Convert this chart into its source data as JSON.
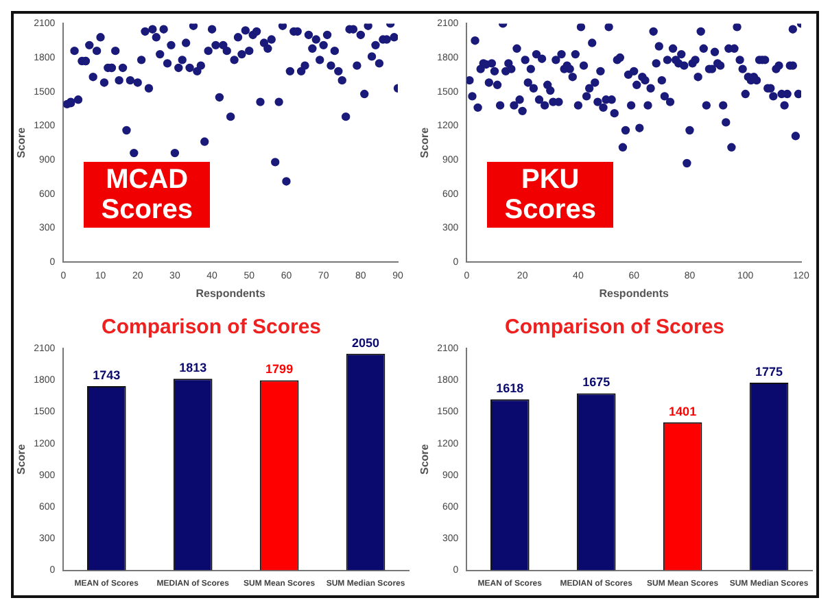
{
  "chart_data": [
    {
      "type": "scatter",
      "xlabel": "Respondents",
      "ylabel": "Score",
      "color": "#1a1a7a",
      "marker": "circle",
      "xlim": [
        0,
        90
      ],
      "xticks": [
        0,
        10,
        20,
        30,
        40,
        50,
        60,
        70,
        80,
        90
      ],
      "ylim": [
        0,
        2100
      ],
      "yticks": [
        0,
        300,
        600,
        900,
        1200,
        1500,
        1800,
        2100
      ],
      "annotations": [
        "MCAD Scores"
      ],
      "x": [
        1,
        2,
        2,
        3,
        4,
        5,
        6,
        6,
        7,
        8,
        9,
        10,
        11,
        12,
        13,
        13,
        14,
        15,
        16,
        17,
        18,
        19,
        20,
        21,
        22,
        23,
        24,
        25,
        26,
        27,
        28,
        29,
        30,
        31,
        32,
        33,
        34,
        35,
        36,
        37,
        38,
        39,
        40,
        41,
        42,
        43,
        44,
        45,
        46,
        47,
        48,
        49,
        50,
        51,
        52,
        53,
        54,
        55,
        56,
        57,
        58,
        59,
        60,
        61,
        62,
        63,
        64,
        65,
        66,
        67,
        68,
        69,
        70,
        71,
        72,
        73,
        74,
        75,
        76,
        77,
        78,
        79,
        80,
        81,
        82,
        83,
        84,
        85,
        86,
        87,
        88,
        89,
        90
      ],
      "values": [
        1390,
        1400,
        1410,
        1860,
        1430,
        1770,
        1770,
        1770,
        1910,
        1630,
        1860,
        1980,
        1580,
        1710,
        1710,
        1710,
        1860,
        1600,
        1710,
        1160,
        1600,
        960,
        1580,
        1780,
        2030,
        1530,
        2050,
        1980,
        1830,
        2050,
        1750,
        1910,
        960,
        1710,
        1780,
        1930,
        1710,
        2080,
        1680,
        1730,
        1060,
        1860,
        2050,
        1910,
        1450,
        1910,
        1860,
        1280,
        1780,
        1980,
        1830,
        2040,
        1860,
        2000,
        2030,
        1410,
        1930,
        1880,
        1960,
        880,
        1410,
        2080,
        710,
        1680,
        2030,
        2030,
        1680,
        1730,
        2000,
        1880,
        1960,
        1780,
        1910,
        2000,
        1730,
        1860,
        1680,
        1600,
        1280,
        2050,
        2050,
        1730,
        2000,
        1480,
        2080,
        1810,
        1910,
        1750,
        1960,
        1960,
        2100,
        1980,
        1530
      ]
    },
    {
      "type": "scatter",
      "xlabel": "Respondents",
      "ylabel": "Score",
      "color": "#1a1a7a",
      "marker": "circle",
      "xlim": [
        0,
        120
      ],
      "xticks": [
        0,
        20,
        40,
        60,
        80,
        100,
        120
      ],
      "ylim": [
        0,
        2100
      ],
      "yticks": [
        0,
        300,
        600,
        900,
        1200,
        1500,
        1800,
        2100
      ],
      "annotations": [
        "PKU Scores"
      ],
      "x": [
        1,
        2,
        3,
        4,
        5,
        6,
        7,
        8,
        9,
        10,
        11,
        12,
        13,
        14,
        15,
        16,
        17,
        18,
        19,
        20,
        21,
        22,
        23,
        24,
        25,
        26,
        27,
        28,
        29,
        30,
        31,
        32,
        33,
        34,
        35,
        36,
        37,
        38,
        39,
        40,
        41,
        42,
        43,
        44,
        45,
        46,
        47,
        48,
        49,
        50,
        51,
        52,
        53,
        54,
        55,
        56,
        57,
        58,
        59,
        60,
        61,
        62,
        63,
        64,
        65,
        66,
        67,
        68,
        69,
        70,
        71,
        72,
        73,
        74,
        75,
        76,
        77,
        78,
        79,
        80,
        81,
        82,
        83,
        84,
        85,
        86,
        87,
        88,
        89,
        90,
        91,
        92,
        93,
        94,
        95,
        96,
        97,
        98,
        99,
        100,
        101,
        102,
        103,
        104,
        105,
        106,
        107,
        108,
        109,
        110,
        111,
        112,
        113,
        114,
        115,
        116,
        117,
        117,
        118,
        119,
        120
      ],
      "values": [
        1600,
        1460,
        1950,
        1360,
        1700,
        1750,
        1740,
        1580,
        1750,
        1680,
        1560,
        1380,
        2100,
        1680,
        1750,
        1700,
        1380,
        1880,
        1430,
        1330,
        1780,
        1580,
        1700,
        1530,
        1830,
        1430,
        1790,
        1380,
        1560,
        1510,
        1410,
        1780,
        1410,
        1830,
        1700,
        1730,
        1700,
        1630,
        1830,
        1380,
        2070,
        1730,
        1460,
        1530,
        1930,
        1580,
        1410,
        1680,
        1360,
        1430,
        2070,
        1430,
        1310,
        1780,
        1800,
        1010,
        1160,
        1650,
        1380,
        1680,
        1560,
        1180,
        1630,
        1600,
        1380,
        1530,
        2030,
        1750,
        1900,
        1600,
        1460,
        1780,
        1410,
        1880,
        1780,
        1750,
        1830,
        1730,
        870,
        1160,
        1750,
        1780,
        1630,
        2030,
        1880,
        1380,
        1700,
        1700,
        1850,
        1750,
        1730,
        1380,
        1230,
        1880,
        1010,
        1880,
        2070,
        1780,
        1700,
        1480,
        1630,
        1600,
        1630,
        1600,
        1780,
        1780,
        1780,
        1530,
        1530,
        1460,
        1700,
        1730,
        1480,
        1380,
        1480,
        1730,
        2050,
        1730,
        1110,
        1480,
        2100
      ]
    },
    {
      "type": "bar",
      "title": "Comparison of Scores",
      "ylabel": "Score",
      "categories": [
        "MEAN of Scores",
        "MEDIAN of Scores",
        "SUM Mean Scores",
        "SUM Median Scores"
      ],
      "values": [
        1743,
        1813,
        1799,
        2050
      ],
      "colors": [
        "#0a0a6e",
        "#0a0a6e",
        "#ff0000",
        "#0a0a6e"
      ],
      "data_labels": true,
      "ylim": [
        0,
        2100
      ],
      "yticks": [
        0,
        300,
        600,
        900,
        1200,
        1500,
        1800,
        2100
      ]
    },
    {
      "type": "bar",
      "title": "Comparison of Scores",
      "ylabel": "Score",
      "categories": [
        "MEAN of Scores",
        "MEDIAN of Scores",
        "SUM Mean Scores",
        "SUM Median Scores"
      ],
      "values": [
        1618,
        1675,
        1401,
        1775
      ],
      "colors": [
        "#0a0a6e",
        "#0a0a6e",
        "#ff0000",
        "#0a0a6e"
      ],
      "data_labels": true,
      "ylim": [
        0,
        2100
      ],
      "yticks": [
        0,
        300,
        600,
        900,
        1200,
        1500,
        1800,
        2100
      ]
    }
  ]
}
